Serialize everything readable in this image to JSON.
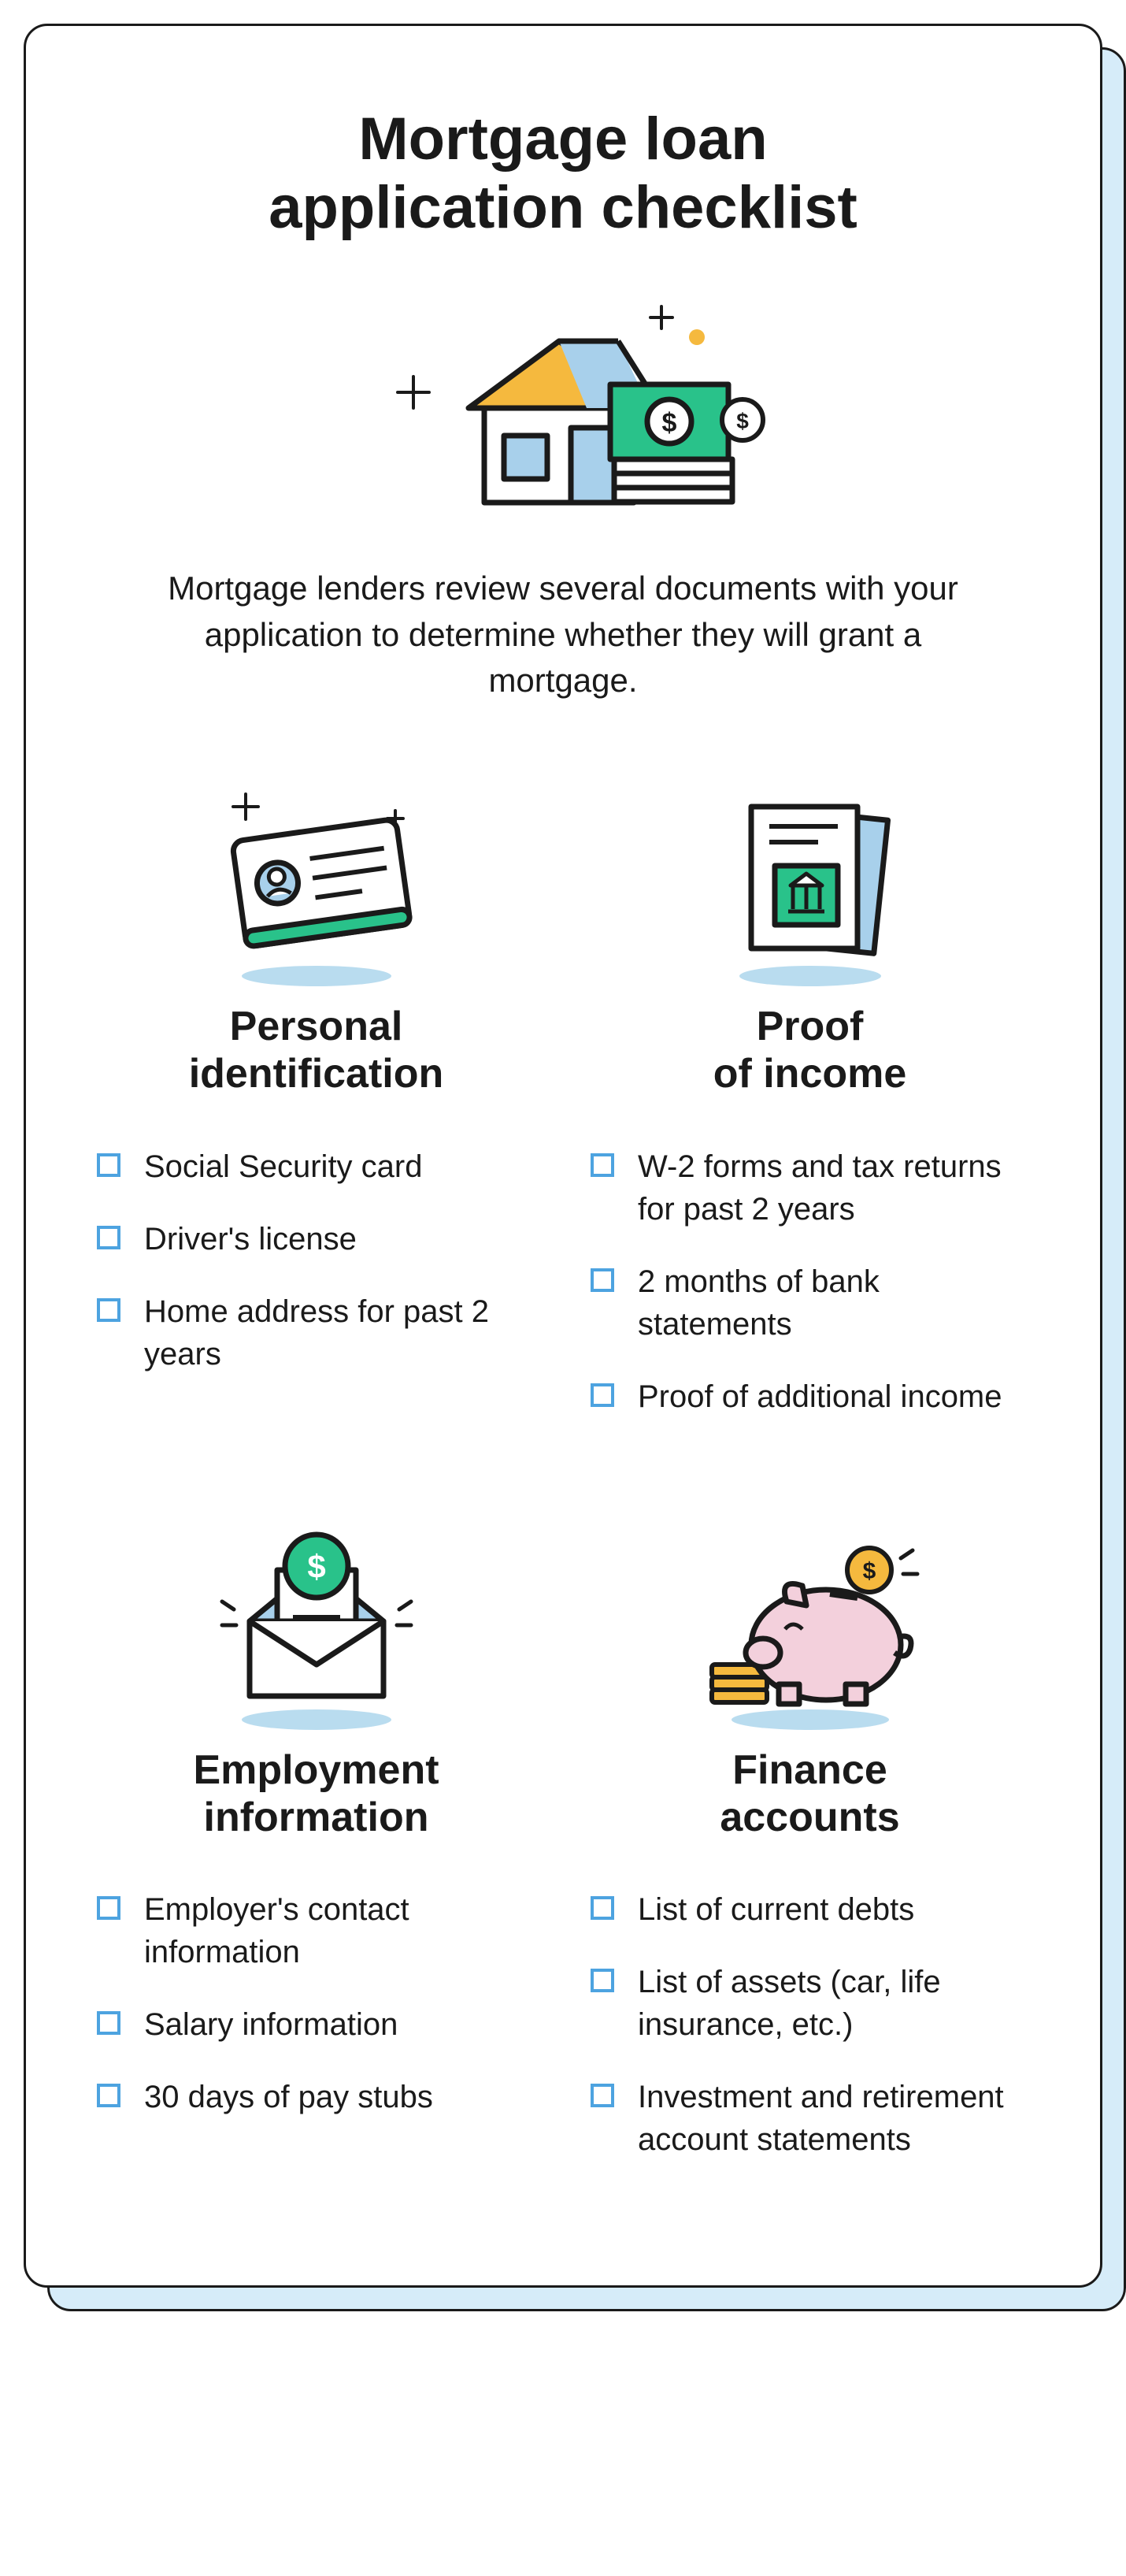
{
  "title": "Mortgage loan\napplication checklist",
  "intro": "Mortgage lenders review several documents with your application to determine whether they will grant a mortgage.",
  "colors": {
    "text": "#1a1a1a",
    "card_border": "#1a1a1a",
    "card_bg": "#ffffff",
    "shadow_card": "#d6ecf9",
    "checkbox_border": "#4da3e0",
    "icon_shadow": "#b9dcef",
    "green": "#29c28a",
    "yellow": "#f5b93e",
    "light_blue": "#a8d0eb",
    "pink": "#f3d0dc",
    "stroke": "#1a1a1a"
  },
  "sections": [
    {
      "icon": "id-card",
      "title": "Personal\nidentification",
      "items": [
        "Social Security card",
        "Driver's license",
        "Home address for past 2 years"
      ]
    },
    {
      "icon": "document-bank",
      "title": "Proof\nof income",
      "items": [
        "W-2 forms and tax returns for past 2 years",
        "2 months of bank statements",
        "Proof of additional income"
      ]
    },
    {
      "icon": "envelope-dollar",
      "title": "Employment\ninformation",
      "items": [
        "Employer's contact information",
        "Salary information",
        "30 days of pay stubs"
      ]
    },
    {
      "icon": "piggy-bank",
      "title": "Finance\naccounts",
      "items": [
        "List of current debts",
        "List of assets (car, life insurance, etc.)",
        "Investment and retirement account statements"
      ]
    }
  ]
}
